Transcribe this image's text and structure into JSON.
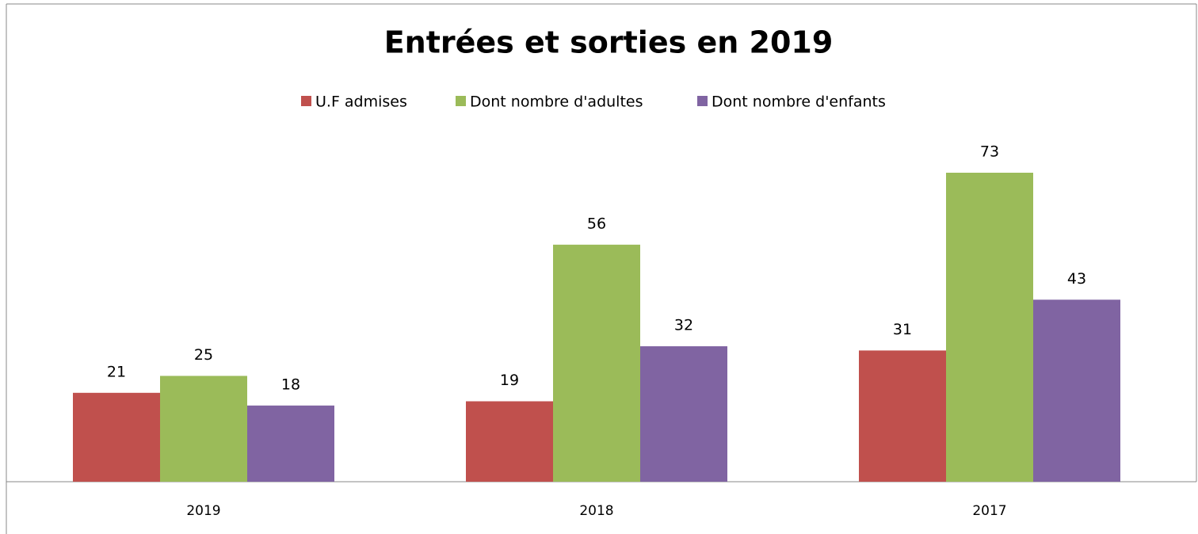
{
  "chart_data": {
    "type": "bar",
    "title": "Entrées et sorties en 2019",
    "categories": [
      "2019",
      "2018",
      "2017"
    ],
    "series": [
      {
        "name": "U.F admises",
        "color": "#c0504d",
        "values": [
          21,
          19,
          31
        ]
      },
      {
        "name": "Dont nombre d'adultes",
        "color": "#9bbb59",
        "values": [
          25,
          56,
          73
        ]
      },
      {
        "name": "Dont nombre d'enfants",
        "color": "#8064a2",
        "values": [
          18,
          32,
          43
        ]
      }
    ],
    "legend": "top"
  }
}
